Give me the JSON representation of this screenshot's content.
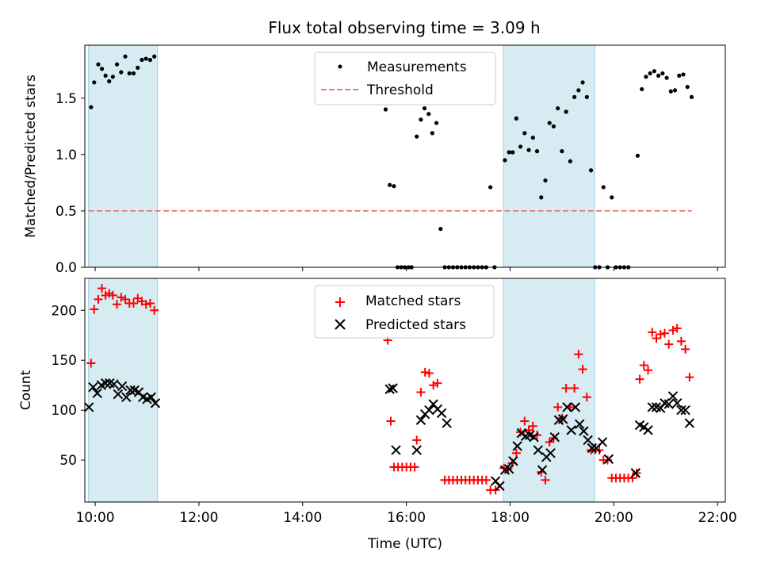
{
  "chart_data": [
    {
      "type": "scatter",
      "title": "Flux total observing time = 3.09 h",
      "ylabel": "Matched/Predicted stars",
      "xlabel": "",
      "xlim": [
        9.8,
        22.15
      ],
      "ylim": [
        0,
        1.97
      ],
      "xticks": [
        10,
        12,
        14,
        16,
        18,
        20,
        22
      ],
      "yticks": [
        0.0,
        0.5,
        1.0,
        1.5
      ],
      "ytick_labels": [
        "0.0",
        "0.5",
        "1.0",
        "1.5"
      ],
      "shaded_spans": [
        [
          9.87,
          11.2
        ],
        [
          17.87,
          19.63
        ]
      ],
      "shade_color": "#add8e6",
      "legend": {
        "placement": "top-center",
        "entries": [
          "Measurements",
          "Threshold"
        ]
      },
      "series": [
        {
          "name": "Measurements",
          "marker": "dot",
          "color": "#000000",
          "points": [
            [
              9.92,
              1.42
            ],
            [
              9.98,
              1.64
            ],
            [
              10.06,
              1.8
            ],
            [
              10.13,
              1.76
            ],
            [
              10.2,
              1.7
            ],
            [
              10.27,
              1.65
            ],
            [
              10.34,
              1.69
            ],
            [
              10.42,
              1.8
            ],
            [
              10.5,
              1.73
            ],
            [
              10.58,
              1.87
            ],
            [
              10.66,
              1.72
            ],
            [
              10.74,
              1.72
            ],
            [
              10.82,
              1.77
            ],
            [
              10.9,
              1.84
            ],
            [
              10.98,
              1.85
            ],
            [
              11.06,
              1.84
            ],
            [
              11.14,
              1.87
            ],
            [
              15.6,
              1.4
            ],
            [
              15.68,
              0.73
            ],
            [
              15.76,
              0.72
            ],
            [
              15.83,
              0.0
            ],
            [
              15.9,
              0.0
            ],
            [
              15.97,
              0.0
            ],
            [
              16.04,
              0.0
            ],
            [
              16.1,
              0.0
            ],
            [
              16.2,
              1.16
            ],
            [
              16.28,
              1.31
            ],
            [
              16.35,
              1.41
            ],
            [
              16.43,
              1.36
            ],
            [
              16.5,
              1.19
            ],
            [
              16.58,
              1.28
            ],
            [
              16.66,
              0.34
            ],
            [
              16.74,
              0.0
            ],
            [
              16.82,
              0.0
            ],
            [
              16.9,
              0.0
            ],
            [
              16.98,
              0.0
            ],
            [
              17.06,
              0.0
            ],
            [
              17.14,
              0.0
            ],
            [
              17.22,
              0.0
            ],
            [
              17.3,
              0.0
            ],
            [
              17.38,
              0.0
            ],
            [
              17.46,
              0.0
            ],
            [
              17.54,
              0.0
            ],
            [
              17.62,
              0.71
            ],
            [
              17.7,
              0.0
            ],
            [
              17.9,
              0.95
            ],
            [
              17.98,
              1.02
            ],
            [
              18.05,
              1.02
            ],
            [
              18.12,
              1.32
            ],
            [
              18.2,
              1.07
            ],
            [
              18.28,
              1.19
            ],
            [
              18.36,
              1.04
            ],
            [
              18.44,
              1.15
            ],
            [
              18.52,
              1.03
            ],
            [
              18.6,
              0.62
            ],
            [
              18.68,
              0.77
            ],
            [
              18.76,
              1.28
            ],
            [
              18.84,
              1.25
            ],
            [
              18.92,
              1.41
            ],
            [
              19.0,
              1.03
            ],
            [
              19.08,
              1.38
            ],
            [
              19.16,
              0.94
            ],
            [
              19.24,
              1.51
            ],
            [
              19.32,
              1.57
            ],
            [
              19.4,
              1.64
            ],
            [
              19.48,
              1.51
            ],
            [
              19.56,
              0.86
            ],
            [
              19.64,
              0.0
            ],
            [
              19.72,
              0.0
            ],
            [
              19.8,
              0.71
            ],
            [
              19.88,
              0.0
            ],
            [
              19.96,
              0.62
            ],
            [
              20.04,
              0.0
            ],
            [
              20.12,
              0.0
            ],
            [
              20.2,
              0.0
            ],
            [
              20.28,
              0.0
            ],
            [
              20.46,
              0.99
            ],
            [
              20.54,
              1.58
            ],
            [
              20.62,
              1.69
            ],
            [
              20.7,
              1.72
            ],
            [
              20.78,
              1.74
            ],
            [
              20.86,
              1.7
            ],
            [
              20.94,
              1.72
            ],
            [
              21.02,
              1.68
            ],
            [
              21.1,
              1.56
            ],
            [
              21.18,
              1.57
            ],
            [
              21.26,
              1.7
            ],
            [
              21.34,
              1.71
            ],
            [
              21.42,
              1.6
            ],
            [
              21.5,
              1.51
            ]
          ]
        },
        {
          "name": "Threshold",
          "style": "dashed",
          "color": "#f08080",
          "x": [
            9.87,
            21.5
          ],
          "y": [
            0.5,
            0.5
          ]
        }
      ]
    },
    {
      "type": "scatter",
      "title": "",
      "xlabel": "Time (UTC)",
      "ylabel": "Count",
      "xlim": [
        9.8,
        22.15
      ],
      "ylim": [
        8,
        232
      ],
      "xticks": [
        10,
        12,
        14,
        16,
        18,
        20,
        22
      ],
      "xtick_labels": [
        "10:00",
        "12:00",
        "14:00",
        "16:00",
        "18:00",
        "20:00",
        "22:00"
      ],
      "yticks": [
        50,
        100,
        150,
        200
      ],
      "ytick_labels": [
        "50",
        "100",
        "150",
        "200"
      ],
      "shaded_spans": [
        [
          9.87,
          11.2
        ],
        [
          17.87,
          19.63
        ]
      ],
      "shade_color": "#add8e6",
      "legend": {
        "placement": "top-center",
        "entries": [
          "Matched stars",
          "Predicted stars"
        ]
      },
      "series": [
        {
          "name": "Matched stars",
          "marker": "plus",
          "color": "#ff0000",
          "points": [
            [
              9.92,
              147
            ],
            [
              9.98,
              201
            ],
            [
              10.06,
              211
            ],
            [
              10.13,
              222
            ],
            [
              10.2,
              215
            ],
            [
              10.27,
              217
            ],
            [
              10.34,
              215
            ],
            [
              10.42,
              206
            ],
            [
              10.5,
              213
            ],
            [
              10.58,
              211
            ],
            [
              10.66,
              207
            ],
            [
              10.74,
              207
            ],
            [
              10.82,
              212
            ],
            [
              10.9,
              209
            ],
            [
              10.98,
              206
            ],
            [
              11.06,
              207
            ],
            [
              11.14,
              200
            ],
            [
              15.64,
              170
            ],
            [
              15.7,
              89
            ],
            [
              15.76,
              43
            ],
            [
              15.84,
              43
            ],
            [
              15.92,
              43
            ],
            [
              16.0,
              43
            ],
            [
              16.08,
              43
            ],
            [
              16.16,
              43
            ],
            [
              16.2,
              70
            ],
            [
              16.28,
              118
            ],
            [
              16.36,
              138
            ],
            [
              16.44,
              137
            ],
            [
              16.52,
              125
            ],
            [
              16.6,
              127
            ],
            [
              16.74,
              30
            ],
            [
              16.82,
              30
            ],
            [
              16.9,
              30
            ],
            [
              16.98,
              30
            ],
            [
              17.06,
              30
            ],
            [
              17.14,
              30
            ],
            [
              17.22,
              30
            ],
            [
              17.3,
              30
            ],
            [
              17.38,
              30
            ],
            [
              17.46,
              30
            ],
            [
              17.54,
              30
            ],
            [
              17.62,
              20
            ],
            [
              17.72,
              20
            ],
            [
              17.88,
              42
            ],
            [
              17.96,
              41
            ],
            [
              18.04,
              47
            ],
            [
              18.12,
              57
            ],
            [
              18.2,
              78
            ],
            [
              18.28,
              89
            ],
            [
              18.36,
              80
            ],
            [
              18.44,
              84
            ],
            [
              18.52,
              75
            ],
            [
              18.6,
              38
            ],
            [
              18.68,
              30
            ],
            [
              18.76,
              68
            ],
            [
              18.84,
              72
            ],
            [
              18.92,
              103
            ],
            [
              19.0,
              92
            ],
            [
              19.08,
              122
            ],
            [
              19.16,
              103
            ],
            [
              19.24,
              122
            ],
            [
              19.32,
              156
            ],
            [
              19.4,
              141
            ],
            [
              19.48,
              113
            ],
            [
              19.56,
              60
            ],
            [
              19.64,
              60
            ],
            [
              19.72,
              60
            ],
            [
              19.8,
              50
            ],
            [
              19.88,
              50
            ],
            [
              19.96,
              32
            ],
            [
              20.04,
              32
            ],
            [
              20.12,
              32
            ],
            [
              20.2,
              32
            ],
            [
              20.28,
              32
            ],
            [
              20.36,
              32
            ],
            [
              20.44,
              37
            ],
            [
              20.5,
              131
            ],
            [
              20.58,
              145
            ],
            [
              20.66,
              140
            ],
            [
              20.74,
              178
            ],
            [
              20.82,
              172
            ],
            [
              20.9,
              176
            ],
            [
              20.98,
              177
            ],
            [
              21.06,
              166
            ],
            [
              21.14,
              180
            ],
            [
              21.22,
              182
            ],
            [
              21.3,
              169
            ],
            [
              21.38,
              161
            ],
            [
              21.46,
              133
            ]
          ]
        },
        {
          "name": "Predicted stars",
          "marker": "x",
          "color": "#000000",
          "points": [
            [
              9.88,
              103
            ],
            [
              9.96,
              123
            ],
            [
              10.04,
              117
            ],
            [
              10.12,
              125
            ],
            [
              10.2,
              127
            ],
            [
              10.28,
              127
            ],
            [
              10.36,
              126
            ],
            [
              10.44,
              116
            ],
            [
              10.52,
              124
            ],
            [
              10.6,
              113
            ],
            [
              10.68,
              120
            ],
            [
              10.76,
              120
            ],
            [
              10.84,
              118
            ],
            [
              10.92,
              113
            ],
            [
              11.0,
              111
            ],
            [
              11.08,
              113
            ],
            [
              11.16,
              107
            ],
            [
              15.68,
              121
            ],
            [
              15.74,
              122
            ],
            [
              15.8,
              60
            ],
            [
              16.2,
              60
            ],
            [
              16.28,
              90
            ],
            [
              16.36,
              96
            ],
            [
              16.44,
              100
            ],
            [
              16.52,
              106
            ],
            [
              16.6,
              101
            ],
            [
              16.68,
              97
            ],
            [
              16.78,
              87
            ],
            [
              17.72,
              29
            ],
            [
              17.8,
              24
            ],
            [
              17.9,
              40
            ],
            [
              17.98,
              41
            ],
            [
              18.06,
              49
            ],
            [
              18.14,
              64
            ],
            [
              18.22,
              77
            ],
            [
              18.3,
              74
            ],
            [
              18.38,
              75
            ],
            [
              18.46,
              73
            ],
            [
              18.54,
              60
            ],
            [
              18.62,
              40
            ],
            [
              18.7,
              53
            ],
            [
              18.78,
              57
            ],
            [
              18.86,
              73
            ],
            [
              18.94,
              90
            ],
            [
              19.02,
              91
            ],
            [
              19.1,
              103
            ],
            [
              19.18,
              80
            ],
            [
              19.26,
              103
            ],
            [
              19.34,
              86
            ],
            [
              19.42,
              79
            ],
            [
              19.5,
              70
            ],
            [
              19.58,
              62
            ],
            [
              19.66,
              62
            ],
            [
              19.78,
              68
            ],
            [
              19.9,
              51
            ],
            [
              20.42,
              37
            ],
            [
              20.5,
              85
            ],
            [
              20.58,
              83
            ],
            [
              20.66,
              80
            ],
            [
              20.74,
              103
            ],
            [
              20.82,
              103
            ],
            [
              20.9,
              102
            ],
            [
              20.98,
              107
            ],
            [
              21.06,
              106
            ],
            [
              21.14,
              114
            ],
            [
              21.22,
              107
            ],
            [
              21.3,
              100
            ],
            [
              21.38,
              100
            ],
            [
              21.46,
              87
            ]
          ]
        }
      ]
    }
  ]
}
